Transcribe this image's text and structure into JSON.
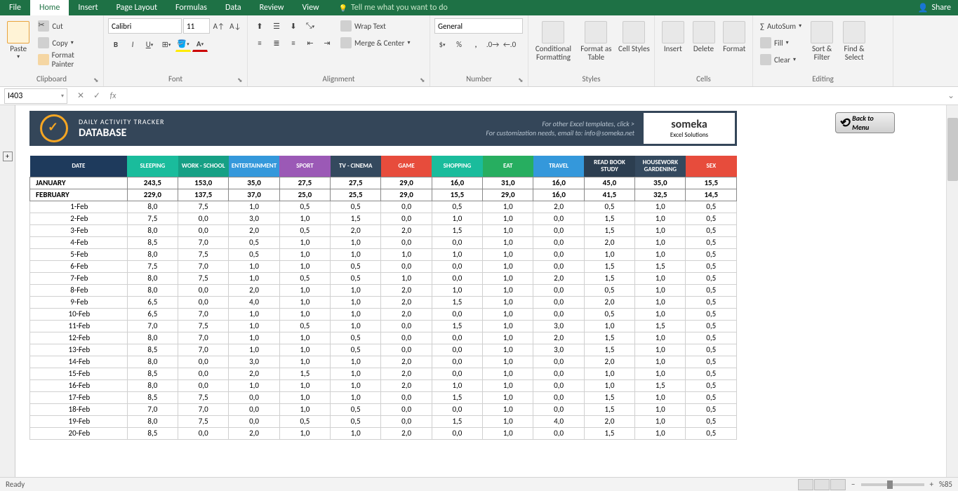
{
  "menu": {
    "file": "File",
    "home": "Home",
    "insert": "Insert",
    "page_layout": "Page Layout",
    "formulas": "Formulas",
    "data": "Data",
    "review": "Review",
    "view": "View",
    "tellme": "Tell me what you want to do",
    "share": "Share"
  },
  "ribbon": {
    "clipboard": {
      "title": "Clipboard",
      "paste": "Paste",
      "cut": "Cut",
      "copy": "Copy",
      "format_painter": "Format Painter"
    },
    "font": {
      "title": "Font",
      "name": "Calibri",
      "size": "11"
    },
    "alignment": {
      "title": "Alignment",
      "wrap": "Wrap Text",
      "merge": "Merge & Center"
    },
    "number": {
      "title": "Number",
      "format": "General"
    },
    "styles": {
      "title": "Styles",
      "cond": "Conditional Formatting",
      "table": "Format as Table",
      "cell": "Cell Styles"
    },
    "cells": {
      "title": "Cells",
      "insert": "Insert",
      "delete": "Delete",
      "format": "Format"
    },
    "editing": {
      "title": "Editing",
      "autosum": "AutoSum",
      "fill": "Fill",
      "clear": "Clear",
      "sort": "Sort & Filter",
      "find": "Find & Select"
    }
  },
  "formula_bar": {
    "cell": "I403",
    "fx": "fx"
  },
  "template": {
    "small_title": "DAILY ACTIVITY TRACKER",
    "big_title": "DATABASE",
    "info1": "For other Excel templates, click >",
    "info2": "For customization needs, email to: info@someka.net",
    "someka": "someka",
    "someka_sub": "Excel Solutions",
    "back": "Back to Menu"
  },
  "columns": [
    "DATE",
    "SLEEPING",
    "WORK - SCHOOL",
    "ENTERTAINMENT",
    "SPORT",
    "TV - CINEMA",
    "GAME",
    "SHOPPING",
    "EAT",
    "TRAVEL",
    "READ BOOK STUDY",
    "HOUSEWORK GARDENING",
    "SEX"
  ],
  "summaries": [
    {
      "label": "JANUARY",
      "vals": [
        "243,5",
        "153,0",
        "35,0",
        "27,5",
        "27,5",
        "29,0",
        "16,0",
        "31,0",
        "16,0",
        "45,0",
        "35,0",
        "15,5"
      ]
    },
    {
      "label": "FEBRUARY",
      "vals": [
        "229,0",
        "137,5",
        "37,0",
        "25,0",
        "25,5",
        "29,0",
        "15,5",
        "29,0",
        "16,0",
        "41,5",
        "32,5",
        "14,5"
      ]
    }
  ],
  "rows": [
    {
      "d": "1-Feb",
      "v": [
        "8,0",
        "7,5",
        "1,0",
        "0,5",
        "0,5",
        "0,0",
        "0,5",
        "1,0",
        "2,0",
        "0,5",
        "1,0",
        "0,5"
      ]
    },
    {
      "d": "2-Feb",
      "v": [
        "7,5",
        "0,0",
        "3,0",
        "1,0",
        "1,5",
        "0,0",
        "1,0",
        "1,0",
        "0,0",
        "1,5",
        "1,0",
        "0,5"
      ]
    },
    {
      "d": "3-Feb",
      "v": [
        "8,0",
        "0,0",
        "2,0",
        "0,5",
        "2,0",
        "2,0",
        "1,5",
        "1,0",
        "0,0",
        "1,5",
        "1,0",
        "0,5"
      ]
    },
    {
      "d": "4-Feb",
      "v": [
        "8,5",
        "7,0",
        "0,5",
        "1,0",
        "1,0",
        "0,0",
        "0,0",
        "1,0",
        "0,0",
        "2,0",
        "1,0",
        "0,5"
      ]
    },
    {
      "d": "5-Feb",
      "v": [
        "8,0",
        "7,5",
        "0,5",
        "1,0",
        "1,0",
        "1,0",
        "1,0",
        "1,0",
        "0,0",
        "1,0",
        "1,0",
        "0,5"
      ]
    },
    {
      "d": "6-Feb",
      "v": [
        "7,5",
        "7,0",
        "1,0",
        "1,0",
        "0,5",
        "0,0",
        "0,0",
        "1,0",
        "0,0",
        "1,5",
        "1,5",
        "0,5"
      ]
    },
    {
      "d": "7-Feb",
      "v": [
        "8,0",
        "7,5",
        "1,0",
        "0,5",
        "0,5",
        "1,0",
        "0,0",
        "1,0",
        "2,0",
        "1,5",
        "1,0",
        "0,5"
      ]
    },
    {
      "d": "8-Feb",
      "v": [
        "8,0",
        "0,0",
        "2,0",
        "1,0",
        "1,0",
        "2,0",
        "1,0",
        "1,0",
        "0,0",
        "0,5",
        "1,0",
        "0,5"
      ]
    },
    {
      "d": "9-Feb",
      "v": [
        "6,5",
        "0,0",
        "4,0",
        "1,0",
        "1,0",
        "2,0",
        "1,5",
        "1,0",
        "0,0",
        "2,0",
        "1,0",
        "0,5"
      ]
    },
    {
      "d": "10-Feb",
      "v": [
        "6,5",
        "7,0",
        "1,0",
        "1,0",
        "1,0",
        "2,0",
        "0,0",
        "1,0",
        "0,0",
        "0,5",
        "1,0",
        "0,5"
      ]
    },
    {
      "d": "11-Feb",
      "v": [
        "7,0",
        "7,5",
        "1,0",
        "0,5",
        "1,0",
        "0,0",
        "1,5",
        "1,0",
        "3,0",
        "1,0",
        "1,5",
        "0,5"
      ]
    },
    {
      "d": "12-Feb",
      "v": [
        "8,0",
        "7,0",
        "1,0",
        "1,0",
        "0,5",
        "0,0",
        "0,0",
        "1,0",
        "2,0",
        "1,5",
        "1,0",
        "0,5"
      ]
    },
    {
      "d": "13-Feb",
      "v": [
        "8,5",
        "7,0",
        "1,0",
        "1,0",
        "0,5",
        "0,0",
        "0,0",
        "1,0",
        "3,0",
        "1,5",
        "1,0",
        "0,5"
      ]
    },
    {
      "d": "14-Feb",
      "v": [
        "8,0",
        "0,0",
        "3,0",
        "1,0",
        "1,0",
        "2,0",
        "0,0",
        "1,0",
        "0,0",
        "2,0",
        "1,0",
        "0,5"
      ]
    },
    {
      "d": "15-Feb",
      "v": [
        "8,5",
        "0,0",
        "2,0",
        "1,5",
        "1,0",
        "2,0",
        "0,0",
        "1,0",
        "0,0",
        "1,0",
        "1,0",
        "0,5"
      ]
    },
    {
      "d": "16-Feb",
      "v": [
        "8,0",
        "0,0",
        "1,0",
        "1,0",
        "1,0",
        "2,0",
        "1,0",
        "1,0",
        "0,0",
        "1,0",
        "1,5",
        "0,5"
      ]
    },
    {
      "d": "17-Feb",
      "v": [
        "8,5",
        "7,5",
        "0,0",
        "1,0",
        "1,0",
        "0,0",
        "1,5",
        "1,0",
        "0,0",
        "1,5",
        "1,0",
        "0,5"
      ]
    },
    {
      "d": "18-Feb",
      "v": [
        "7,0",
        "7,0",
        "0,0",
        "1,0",
        "0,5",
        "0,0",
        "0,0",
        "1,0",
        "0,0",
        "1,5",
        "1,0",
        "0,5"
      ]
    },
    {
      "d": "19-Feb",
      "v": [
        "8,0",
        "7,5",
        "0,0",
        "0,5",
        "0,5",
        "0,0",
        "1,5",
        "1,0",
        "4,0",
        "2,0",
        "1,0",
        "0,5"
      ]
    },
    {
      "d": "20-Feb",
      "v": [
        "8,5",
        "0,0",
        "2,0",
        "1,0",
        "1,0",
        "2,0",
        "0,0",
        "1,0",
        "0,0",
        "1,5",
        "1,0",
        "0,5"
      ]
    }
  ],
  "status": {
    "ready": "Ready",
    "zoom": "%85"
  }
}
